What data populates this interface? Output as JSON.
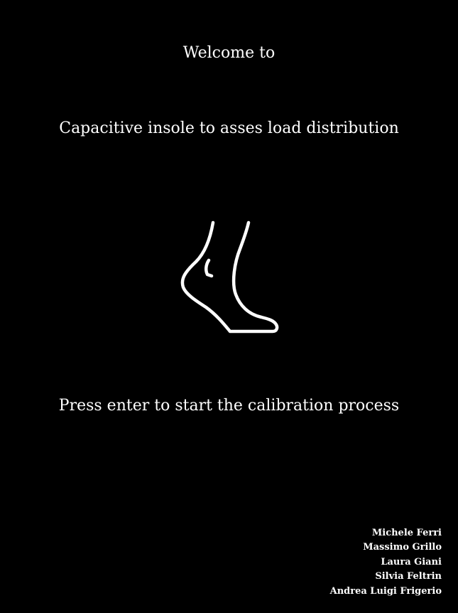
{
  "welcome_text": "Welcome to",
  "title": "Capacitive insole to asses load distribution",
  "icon": "foot-icon",
  "prompt": "Press enter to start the calibration process",
  "authors": [
    "Michele Ferri",
    "Massimo Grillo",
    "Laura Giani",
    "Silvia Feltrin",
    "Andrea Luigi Frigerio"
  ],
  "colors": {
    "background": "#000000",
    "foreground": "#ffffff"
  }
}
